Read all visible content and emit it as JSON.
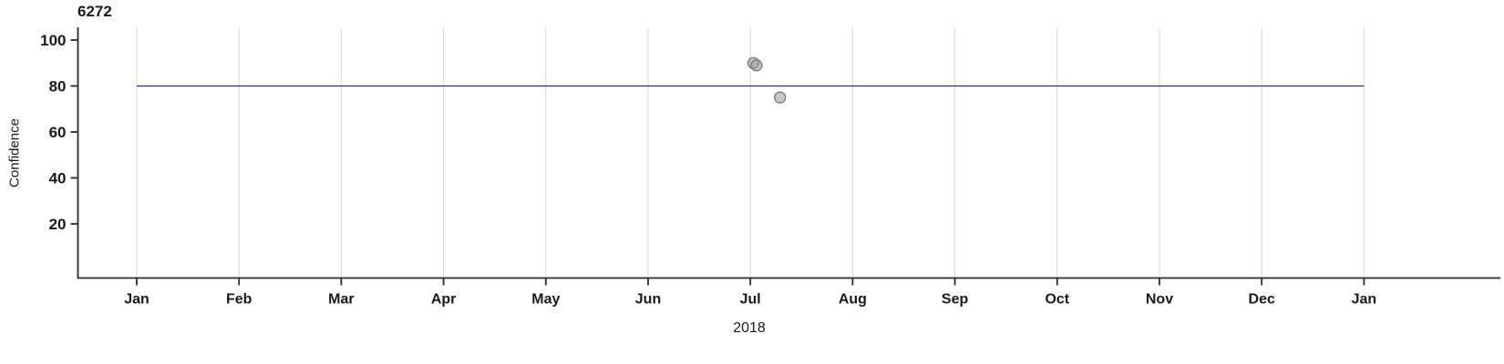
{
  "chart_data": {
    "type": "scatter",
    "title": "6272",
    "ylabel": "Confidence",
    "xlabel": "2018",
    "x_ticklabels": [
      "Jan",
      "Feb",
      "Mar",
      "Apr",
      "May",
      "Jun",
      "Jul",
      "Aug",
      "Sep",
      "Oct",
      "Nov",
      "Dec",
      "Jan"
    ],
    "y_ticks": [
      20,
      40,
      60,
      80,
      100
    ],
    "ylim": [
      0,
      105
    ],
    "grid": "vertical-month-gridlines",
    "legend": "none",
    "reference_line": {
      "value": 80,
      "color": "#2b2b8e"
    },
    "points": [
      {
        "month": 6.03,
        "value": 90
      },
      {
        "month": 6.06,
        "value": 89
      },
      {
        "month": 6.29,
        "value": 75
      }
    ],
    "colors": {
      "axis": "#2b2b2b",
      "gridline": "#d9d9d9",
      "tick_text": "#1a1a1a",
      "point_fill": "#9a9a9a",
      "point_stroke": "#6f6f6f"
    }
  }
}
